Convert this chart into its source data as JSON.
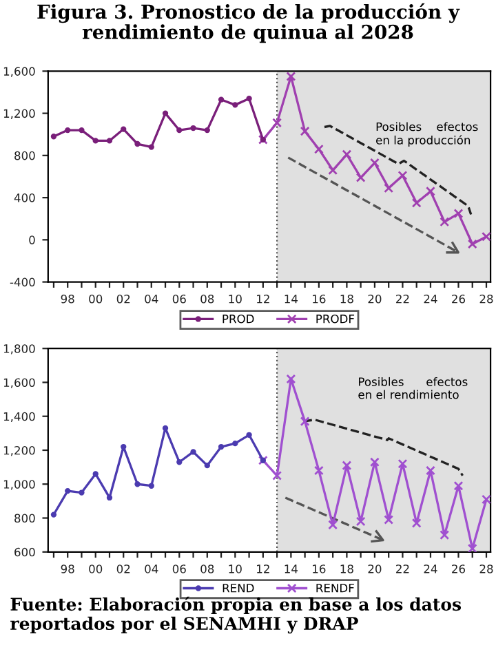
{
  "chart_data": [
    {
      "type": "line",
      "title": "Figura 3. Pronostico de la producción y\nrendimiento de quinua al 2028",
      "series": [
        {
          "name": "PROD",
          "color": "#7a1f7a",
          "marker": "circle",
          "x": [
            1997,
            1998,
            1999,
            2000,
            2001,
            2002,
            2003,
            2004,
            2005,
            2006,
            2007,
            2008,
            2009,
            2010,
            2011,
            2012
          ],
          "values": [
            980,
            1040,
            1040,
            940,
            940,
            1050,
            910,
            880,
            1200,
            1040,
            1060,
            1040,
            1330,
            1280,
            1340,
            950
          ]
        },
        {
          "name": "PRODF",
          "color": "#a040b0",
          "marker": "cross",
          "x": [
            2012,
            2013,
            2014,
            2015,
            2016,
            2017,
            2018,
            2019,
            2020,
            2021,
            2022,
            2023,
            2024,
            2025,
            2026,
            2027,
            2028
          ],
          "values": [
            950,
            1110,
            1550,
            1030,
            860,
            660,
            810,
            590,
            730,
            490,
            610,
            350,
            460,
            170,
            250,
            -40,
            30
          ]
        },
        {
          "type": "line",
          "color": "#222222",
          "line_style": "dashed",
          "x": [
            2016.4,
            2016.8,
            2021.7,
            2022.1,
            2026.7,
            2026.9
          ],
          "values": [
            1070,
            1080,
            720,
            750,
            320,
            240
          ]
        },
        {
          "type": "line",
          "color": "#555555",
          "line_style": "dashed",
          "x": [
            2013.8,
            2026.0
          ],
          "values": [
            780,
            -120
          ]
        }
      ],
      "xlim": [
        1996.6,
        2028.3
      ],
      "ylim": [
        -400,
        1600
      ],
      "xticks": [
        {
          "value": 1997,
          "label": null
        },
        {
          "value": 1998,
          "label": "98"
        },
        {
          "value": 1999,
          "label": null
        },
        {
          "value": 2000,
          "label": "00"
        },
        {
          "value": 2001,
          "label": null
        },
        {
          "value": 2002,
          "label": "02"
        },
        {
          "value": 2003,
          "label": null
        },
        {
          "value": 2004,
          "label": "04"
        },
        {
          "value": 2005,
          "label": null
        },
        {
          "value": 2006,
          "label": "06"
        },
        {
          "value": 2007,
          "label": null
        },
        {
          "value": 2008,
          "label": "08"
        },
        {
          "value": 2009,
          "label": null
        },
        {
          "value": 2010,
          "label": "10"
        },
        {
          "value": 2011,
          "label": null
        },
        {
          "value": 2012,
          "label": "12"
        },
        {
          "value": 2013,
          "label": null
        },
        {
          "value": 2014,
          "label": "14"
        },
        {
          "value": 2015,
          "label": null
        },
        {
          "value": 2016,
          "label": "16"
        },
        {
          "value": 2017,
          "label": null
        },
        {
          "value": 2018,
          "label": "18"
        },
        {
          "value": 2019,
          "label": null
        },
        {
          "value": 2020,
          "label": "20"
        },
        {
          "value": 2021,
          "label": null
        },
        {
          "value": 2022,
          "label": "22"
        },
        {
          "value": 2023,
          "label": null
        },
        {
          "value": 2024,
          "label": "24"
        },
        {
          "value": 2025,
          "label": null
        },
        {
          "value": 2026,
          "label": "26"
        },
        {
          "value": 2027,
          "label": null
        },
        {
          "value": 2028,
          "label": "28"
        }
      ],
      "yticks": [
        -400,
        0,
        400,
        {
          "value": 800,
          "label": "800"
        },
        {
          "value": 1200,
          "label": "1,200"
        },
        {
          "value": 1600,
          "label": "1,600"
        }
      ],
      "bands": [
        {
          "axis": "x",
          "from": 2013,
          "to": 2028.3,
          "color": "#e0e0e0"
        }
      ],
      "ref_lines": [
        {
          "axis": "x",
          "value": 2013,
          "color": "#555555",
          "line_style": "dotted"
        }
      ],
      "annotations": [
        "Posibles    efectos\nen la producción"
      ],
      "legend": "bottom",
      "grid": false
    },
    {
      "type": "line",
      "series": [
        {
          "name": "REND",
          "color": "#4b3bb0",
          "marker": "circle",
          "x": [
            1997,
            1998,
            1999,
            2000,
            2001,
            2002,
            2003,
            2004,
            2005,
            2006,
            2007,
            2008,
            2009,
            2010,
            2011,
            2012
          ],
          "values": [
            820,
            960,
            950,
            1060,
            920,
            1220,
            1000,
            990,
            1330,
            1130,
            1190,
            1110,
            1220,
            1240,
            1290,
            1140
          ]
        },
        {
          "name": "RENDF",
          "color": "#a050d0",
          "marker": "cross",
          "x": [
            2012,
            2013,
            2014,
            2015,
            2016,
            2017,
            2018,
            2019,
            2020,
            2021,
            2022,
            2023,
            2024,
            2025,
            2026,
            2027,
            2028
          ],
          "values": [
            1140,
            1050,
            1620,
            1370,
            1080,
            760,
            1110,
            780,
            1130,
            790,
            1120,
            770,
            1080,
            700,
            990,
            620,
            910
          ]
        },
        {
          "type": "line",
          "color": "#222222",
          "line_style": "dashed",
          "x": [
            2014.9,
            2015.7,
            2020.9,
            2021.0,
            2026.0,
            2026.3
          ],
          "values": [
            1370,
            1380,
            1260,
            1270,
            1090,
            1050
          ]
        },
        {
          "type": "line",
          "color": "#555555",
          "line_style": "dashed",
          "x": [
            2013.6,
            2020.6
          ],
          "values": [
            920,
            670
          ]
        }
      ],
      "xlim": [
        1996.6,
        2028.3
      ],
      "ylim": [
        600,
        1800
      ],
      "xticks": [
        {
          "value": 1997,
          "label": null
        },
        {
          "value": 1998,
          "label": "98"
        },
        {
          "value": 1999,
          "label": null
        },
        {
          "value": 2000,
          "label": "00"
        },
        {
          "value": 2001,
          "label": null
        },
        {
          "value": 2002,
          "label": "02"
        },
        {
          "value": 2003,
          "label": null
        },
        {
          "value": 2004,
          "label": "04"
        },
        {
          "value": 2005,
          "label": null
        },
        {
          "value": 2006,
          "label": "06"
        },
        {
          "value": 2007,
          "label": null
        },
        {
          "value": 2008,
          "label": "08"
        },
        {
          "value": 2009,
          "label": null
        },
        {
          "value": 2010,
          "label": "10"
        },
        {
          "value": 2011,
          "label": null
        },
        {
          "value": 2012,
          "label": "12"
        },
        {
          "value": 2013,
          "label": null
        },
        {
          "value": 2014,
          "label": "14"
        },
        {
          "value": 2015,
          "label": null
        },
        {
          "value": 2016,
          "label": "16"
        },
        {
          "value": 2017,
          "label": null
        },
        {
          "value": 2018,
          "label": "18"
        },
        {
          "value": 2019,
          "label": null
        },
        {
          "value": 2020,
          "label": "20"
        },
        {
          "value": 2021,
          "label": null
        },
        {
          "value": 2022,
          "label": "22"
        },
        {
          "value": 2023,
          "label": null
        },
        {
          "value": 2024,
          "label": "24"
        },
        {
          "value": 2025,
          "label": null
        },
        {
          "value": 2026,
          "label": "26"
        },
        {
          "value": 2027,
          "label": null
        },
        {
          "value": 2028,
          "label": "28"
        }
      ],
      "yticks": [
        600,
        800,
        {
          "value": 1000,
          "label": "1,000"
        },
        {
          "value": 1200,
          "label": "1,200"
        },
        {
          "value": 1400,
          "label": "1,400"
        },
        {
          "value": 1600,
          "label": "1,600"
        },
        {
          "value": 1800,
          "label": "1,800"
        }
      ],
      "bands": [
        {
          "axis": "x",
          "from": 2013,
          "to": 2028.3,
          "color": "#e0e0e0"
        }
      ],
      "ref_lines": [
        {
          "axis": "x",
          "value": 2013,
          "color": "#555555",
          "line_style": "dotted"
        }
      ],
      "annotations": [
        "Posibles      efectos\nen el rendimiento",
        "Fuente: Elaboración propia en base a los datos reportados por el SENAMHI y DRAP"
      ],
      "legend": "bottom",
      "grid": false
    }
  ]
}
